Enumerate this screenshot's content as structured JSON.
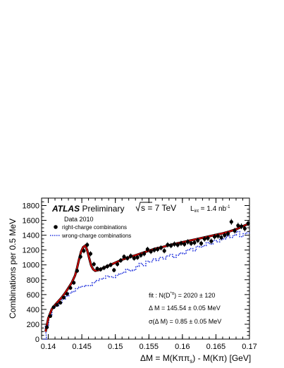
{
  "chart_data": {
    "type": "scatter",
    "annotations": {
      "atlas": "ATLAS",
      "preliminary": "Preliminary",
      "sqrt_s": "s = 7 TeV",
      "lumi": "L",
      "lumi_sub": "int",
      "lumi_value": " = 1.4 nb",
      "lumi_sup": "-1",
      "data_label": "Data 2010",
      "fit_line1_a": "fit  : N(D",
      "fit_line1_sup": "*±",
      "fit_line1_b": ") = 2020 ± 120",
      "fit_line2": "Δ M = 145.54 ± 0.05 MeV",
      "fit_line3": "σ(Δ M) = 0.85 ± 0.05 MeV"
    },
    "ylabel": "Combinations per 0.5 MeV",
    "xlabel": "ΔM = M(Kππ",
    "xlabel_sub": "s",
    "xlabel_tail": ") - M(Kπ)  [GeV]",
    "xlim": [
      0.139,
      0.17
    ],
    "ylim": [
      0,
      1900
    ],
    "xticks": [
      "0.14",
      "0.145",
      "0.15",
      "0.155",
      "0.16",
      "0.165",
      "0.17"
    ],
    "yticks": [
      "0",
      "200",
      "400",
      "600",
      "800",
      "1000",
      "1200",
      "1400",
      "1600",
      "1800"
    ],
    "colors": {
      "fit": "#cc0000",
      "wrong": "#2233dd",
      "data": "#000000"
    },
    "series": [
      {
        "name": "right-charge combinations",
        "style": "points",
        "x": [
          0.1398,
          0.1403,
          0.1408,
          0.1413,
          0.1418,
          0.1423,
          0.1428,
          0.1433,
          0.1438,
          0.1443,
          0.1448,
          0.1453,
          0.1458,
          0.1463,
          0.1468,
          0.1473,
          0.1478,
          0.1483,
          0.1488,
          0.1493,
          0.1498,
          0.1503,
          0.1508,
          0.1513,
          0.1518,
          0.1523,
          0.1528,
          0.1533,
          0.1538,
          0.1543,
          0.1548,
          0.1553,
          0.1558,
          0.1563,
          0.1568,
          0.1573,
          0.1578,
          0.1583,
          0.1588,
          0.1593,
          0.1598,
          0.1603,
          0.1608,
          0.1613,
          0.1618,
          0.1623,
          0.1628,
          0.1633,
          0.1638,
          0.1643,
          0.1648,
          0.1653,
          0.1658,
          0.1663,
          0.1668,
          0.1673,
          0.1678,
          0.1683,
          0.1688,
          0.1693,
          0.1698
        ],
        "y": [
          160,
          310,
          430,
          460,
          490,
          560,
          610,
          690,
          760,
          920,
          1110,
          1190,
          1270,
          1150,
          1010,
          950,
          940,
          960,
          980,
          1000,
          930,
          1010,
          1060,
          1110,
          1090,
          1120,
          1090,
          1100,
          1130,
          1150,
          1210,
          1180,
          1200,
          1210,
          1230,
          1190,
          1270,
          1260,
          1280,
          1270,
          1290,
          1280,
          1310,
          1290,
          1300,
          1330,
          1290,
          1350,
          1360,
          1320,
          1380,
          1390,
          1370,
          1400,
          1420,
          1580,
          1460,
          1530,
          1520,
          1490,
          1560
        ]
      },
      {
        "name": "wrong-charge combinations",
        "style": "dotted",
        "x": [
          0.1395,
          0.1398,
          0.1403,
          0.1408,
          0.1413,
          0.1418,
          0.1423,
          0.1428,
          0.1433,
          0.1438,
          0.1443,
          0.1448,
          0.1453,
          0.1458,
          0.1463,
          0.1468,
          0.1473,
          0.1478,
          0.1483,
          0.1488,
          0.1493,
          0.1498,
          0.1503,
          0.1508,
          0.1513,
          0.1518,
          0.1523,
          0.1528,
          0.1533,
          0.1538,
          0.1543,
          0.1548,
          0.1553,
          0.1558,
          0.1563,
          0.1568,
          0.1573,
          0.1578,
          0.1583,
          0.1588,
          0.1593,
          0.1598,
          0.1603,
          0.1608,
          0.1613,
          0.1618,
          0.1623,
          0.1628,
          0.1633,
          0.1638,
          0.1643,
          0.1648,
          0.1653,
          0.1658,
          0.1663,
          0.1668,
          0.1673,
          0.1678,
          0.1683,
          0.1688,
          0.1693,
          0.1698
        ],
        "y": [
          0,
          170,
          330,
          420,
          450,
          480,
          540,
          580,
          620,
          640,
          680,
          700,
          710,
          720,
          720,
          760,
          790,
          810,
          820,
          850,
          840,
          830,
          860,
          880,
          900,
          940,
          920,
          930,
          980,
          1020,
          990,
          1050,
          1040,
          1080,
          1060,
          1100,
          1080,
          1120,
          1140,
          1100,
          1130,
          1160,
          1150,
          1200,
          1220,
          1190,
          1250,
          1240,
          1260,
          1300,
          1280,
          1330,
          1310,
          1340,
          1350,
          1390,
          1370,
          1400,
          1450,
          1380,
          1420,
          1430
        ]
      },
      {
        "name": "fit",
        "style": "line",
        "x": [
          0.1396,
          0.14,
          0.1405,
          0.141,
          0.1415,
          0.142,
          0.1425,
          0.143,
          0.1435,
          0.144,
          0.1443,
          0.1446,
          0.1449,
          0.1452,
          0.1455,
          0.1458,
          0.1461,
          0.1464,
          0.1467,
          0.147,
          0.1475,
          0.148,
          0.149,
          0.15,
          0.151,
          0.152,
          0.153,
          0.154,
          0.155,
          0.156,
          0.157,
          0.158,
          0.159,
          0.16,
          0.161,
          0.162,
          0.163,
          0.164,
          0.165,
          0.166,
          0.167,
          0.168,
          0.169,
          0.17
        ],
        "y": [
          100,
          280,
          400,
          460,
          510,
          560,
          620,
          690,
          760,
          860,
          960,
          1080,
          1180,
          1240,
          1260,
          1200,
          1090,
          990,
          940,
          920,
          930,
          950,
          990,
          1030,
          1070,
          1100,
          1130,
          1160,
          1190,
          1220,
          1240,
          1265,
          1285,
          1305,
          1325,
          1345,
          1365,
          1385,
          1405,
          1425,
          1450,
          1480,
          1520,
          1560
        ]
      }
    ]
  }
}
